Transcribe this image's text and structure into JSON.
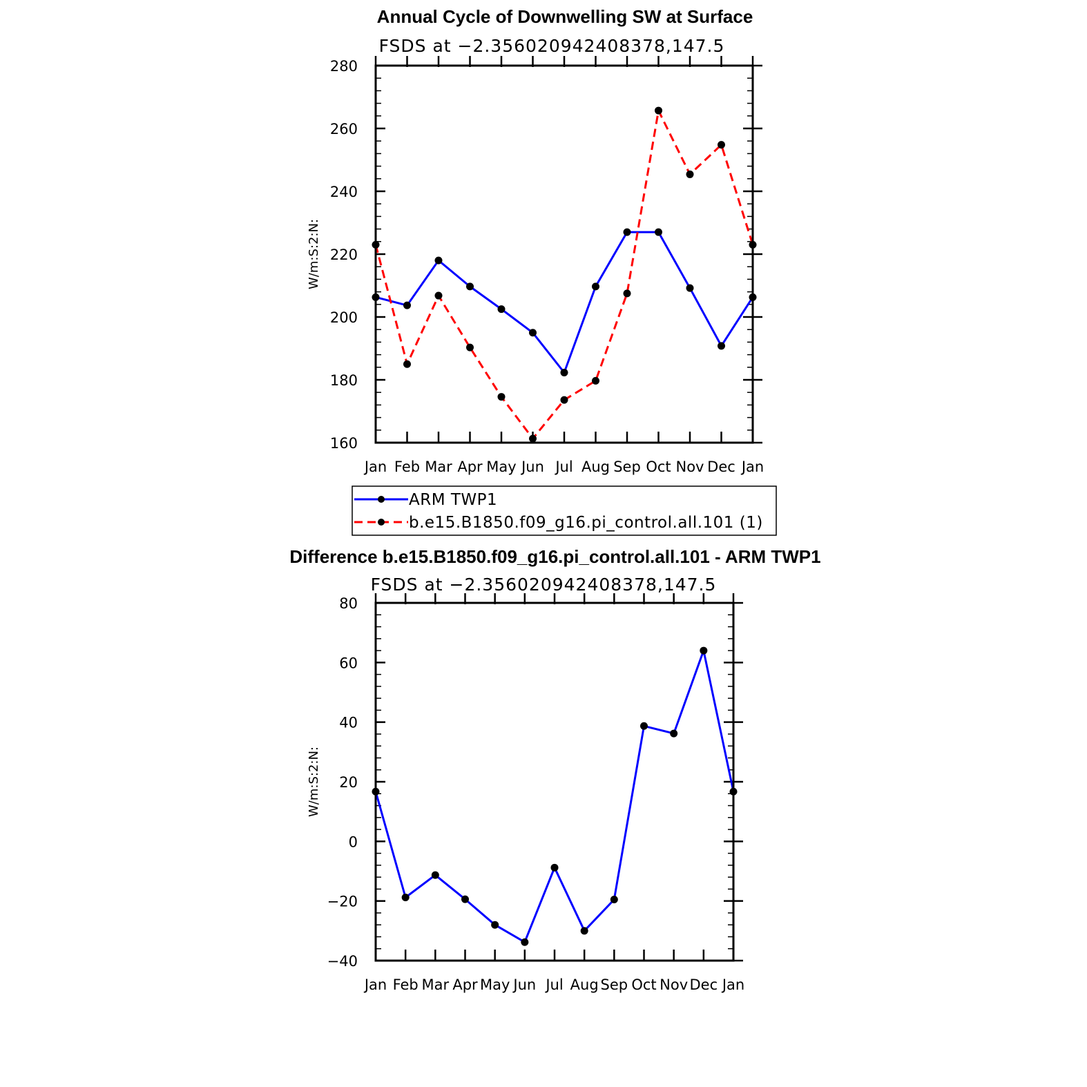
{
  "chart_data": [
    {
      "type": "line",
      "title": "Annual Cycle of Downwelling SW at Surface",
      "subtitle": "FSDS at −2.356020942408378,147.5",
      "ylabel": "W/m:S:2:N:",
      "xlabel": "",
      "categories": [
        "Jan",
        "Feb",
        "Mar",
        "Apr",
        "May",
        "Jun",
        "Jul",
        "Aug",
        "Sep",
        "Oct",
        "Nov",
        "Dec",
        "Jan"
      ],
      "ylim": [
        160,
        280
      ],
      "yticks": [
        "160",
        "180",
        "200",
        "220",
        "240",
        "260",
        "280"
      ],
      "series": [
        {
          "name": "ARM TWP1",
          "color": "#0000ff",
          "dash": "solid",
          "values": [
            206.3,
            203.7,
            218.0,
            209.7,
            202.5,
            195.0,
            182.3,
            209.7,
            227.0,
            227.0,
            209.2,
            190.8,
            206.3
          ]
        },
        {
          "name": "b.e15.B1850.f09_g16.pi_control.all.101 (1)",
          "color": "#ff0000",
          "dash": "dashed",
          "values": [
            223.0,
            185.0,
            206.8,
            190.3,
            174.6,
            161.3,
            173.6,
            179.7,
            207.5,
            265.7,
            245.4,
            254.8,
            223.0
          ]
        }
      ],
      "legend": "below"
    },
    {
      "type": "line",
      "title": "Difference b.e15.B1850.f09_g16.pi_control.all.101 - ARM TWP1",
      "subtitle": "FSDS at −2.356020942408378,147.5",
      "ylabel": "W/m:S:2:N:",
      "xlabel": "",
      "categories": [
        "Jan",
        "Feb",
        "Mar",
        "Apr",
        "May",
        "Jun",
        "Jul",
        "Aug",
        "Sep",
        "Oct",
        "Nov",
        "Dec",
        "Jan"
      ],
      "ylim": [
        -40,
        80
      ],
      "yticks": [
        "−40",
        "−20",
        "0",
        "20",
        "40",
        "60",
        "80"
      ],
      "series": [
        {
          "name": "Difference",
          "color": "#0000ff",
          "dash": "solid",
          "values": [
            16.7,
            -18.8,
            -11.3,
            -19.4,
            -28.0,
            -33.8,
            -8.8,
            -30.0,
            -19.5,
            38.7,
            36.2,
            64.0,
            16.7
          ]
        }
      ]
    }
  ]
}
